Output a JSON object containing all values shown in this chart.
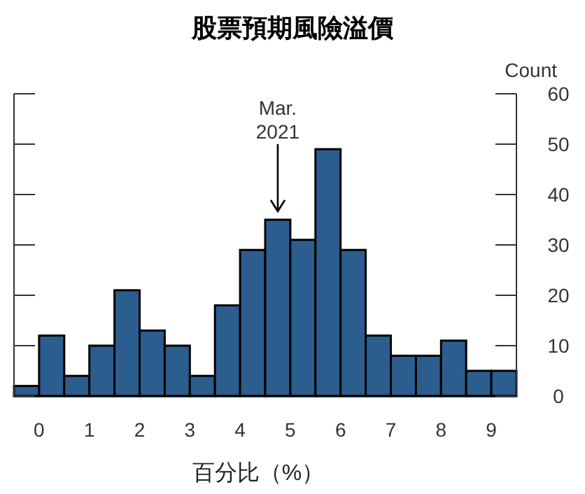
{
  "chart_data": {
    "type": "histogram",
    "title": "股票預期風險溢價",
    "xlabel": "百分比（%）",
    "ylabel": "Count",
    "bins": [
      -0.5,
      0,
      0.5,
      1,
      1.5,
      2,
      2.5,
      3,
      3.5,
      4,
      4.5,
      5,
      5.5,
      6,
      6.5,
      7,
      7.5,
      8,
      8.5,
      9,
      9.5
    ],
    "values": [
      2,
      12,
      4,
      10,
      21,
      13,
      10,
      4,
      18,
      29,
      35,
      31,
      49,
      29,
      12,
      8,
      8,
      11,
      5,
      5
    ],
    "color": "#2c5d8f",
    "xlim": [
      -0.5,
      9.5
    ],
    "xticks": [
      0,
      1,
      2,
      3,
      4,
      5,
      6,
      7,
      8,
      9
    ],
    "ylim": [
      0,
      60
    ],
    "yticks": [
      0,
      10,
      20,
      30,
      40,
      50,
      60
    ],
    "annotations": [
      {
        "text": "Mar.\n2021",
        "x": 4.75,
        "y": 35
      }
    ]
  }
}
